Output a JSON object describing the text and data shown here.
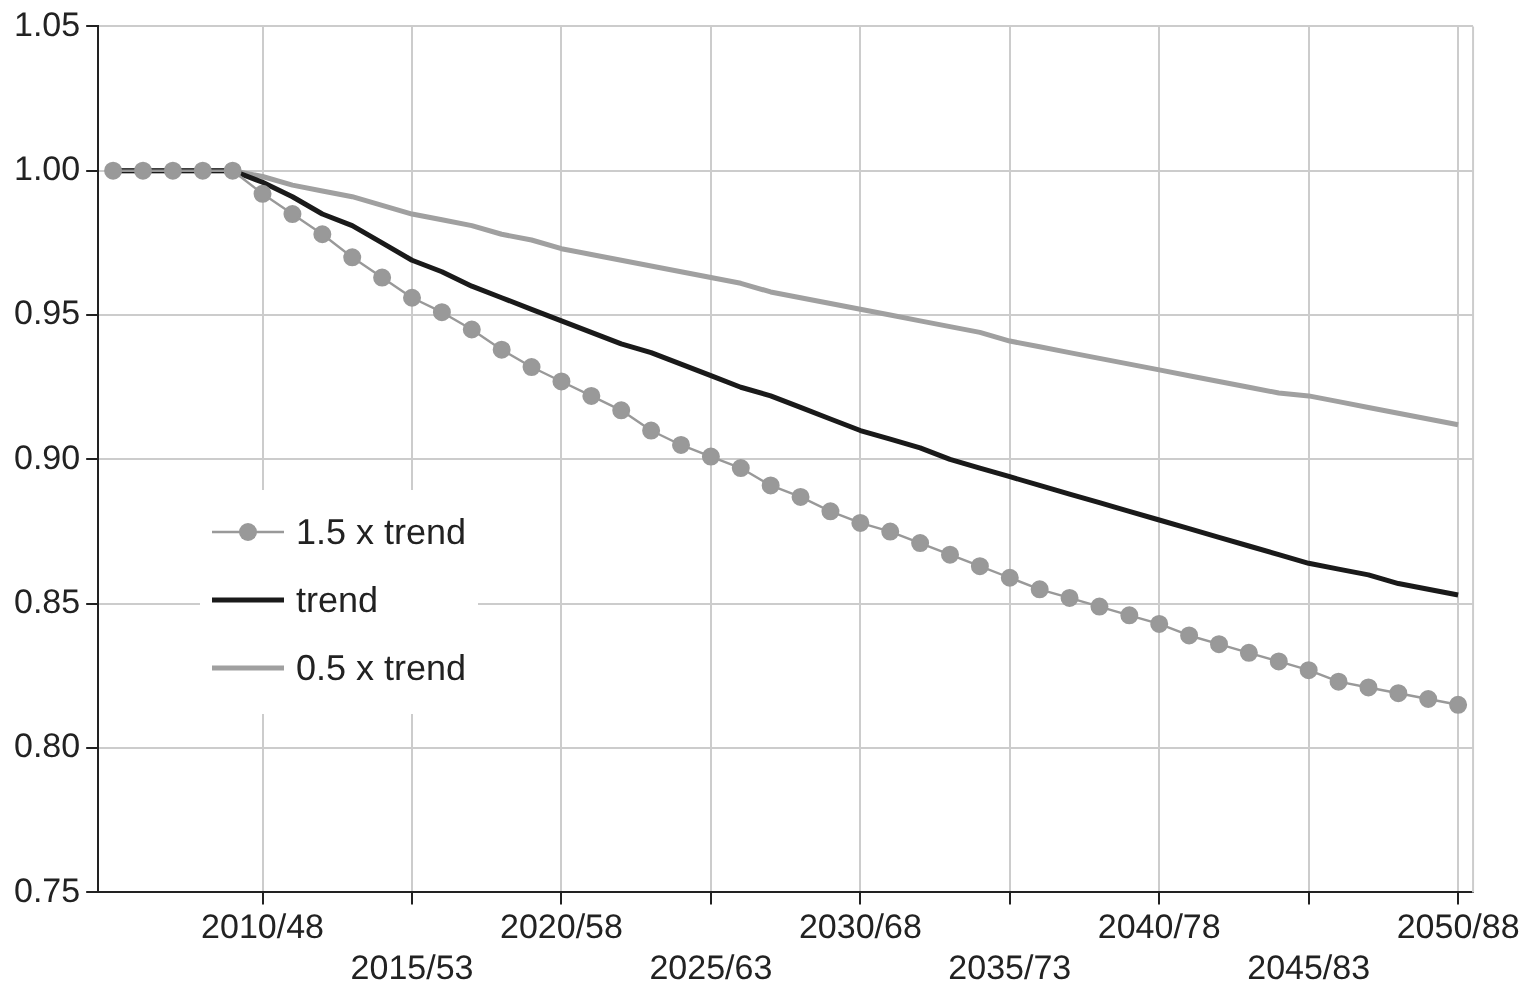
{
  "chart_data": {
    "type": "line",
    "categories": [
      null,
      null,
      null,
      null,
      null,
      "2010/48",
      null,
      null,
      null,
      null,
      "2015/53",
      null,
      null,
      null,
      null,
      "2020/58",
      null,
      null,
      null,
      null,
      "2025/63",
      null,
      null,
      null,
      null,
      "2030/68",
      null,
      null,
      null,
      null,
      "2035/73",
      null,
      null,
      null,
      null,
      "2040/78",
      null,
      null,
      null,
      null,
      "2045/83",
      null,
      null,
      null,
      null,
      "2050/88"
    ],
    "series": [
      {
        "name": "1.5 x trend",
        "color": "#999999",
        "marker": "circle",
        "values": [
          1.0,
          1.0,
          1.0,
          1.0,
          1.0,
          0.992,
          0.985,
          0.978,
          0.97,
          0.963,
          0.956,
          0.951,
          0.945,
          0.938,
          0.932,
          0.927,
          0.922,
          0.917,
          0.91,
          0.905,
          0.901,
          0.897,
          0.891,
          0.887,
          0.882,
          0.878,
          0.875,
          0.871,
          0.867,
          0.863,
          0.859,
          0.855,
          0.852,
          0.849,
          0.846,
          0.843,
          0.839,
          0.836,
          0.833,
          0.83,
          0.827,
          0.823,
          0.821,
          0.819,
          0.817,
          0.815
        ]
      },
      {
        "name": "trend",
        "color": "#1a1a1a",
        "marker": "none",
        "values": [
          1.0,
          1.0,
          1.0,
          1.0,
          1.0,
          0.996,
          0.991,
          0.985,
          0.981,
          0.975,
          0.969,
          0.965,
          0.96,
          0.956,
          0.952,
          0.948,
          0.944,
          0.94,
          0.937,
          0.933,
          0.929,
          0.925,
          0.922,
          0.918,
          0.914,
          0.91,
          0.907,
          0.904,
          0.9,
          0.897,
          0.894,
          0.891,
          0.888,
          0.885,
          0.882,
          0.879,
          0.876,
          0.873,
          0.87,
          0.867,
          0.864,
          0.862,
          0.86,
          0.857,
          0.855,
          0.853
        ]
      },
      {
        "name": "0.5 x trend",
        "color": "#a0a0a0",
        "marker": "none",
        "values": [
          1.0,
          1.0,
          1.0,
          1.0,
          1.0,
          0.998,
          0.995,
          0.993,
          0.991,
          0.988,
          0.985,
          0.983,
          0.981,
          0.978,
          0.976,
          0.973,
          0.971,
          0.969,
          0.967,
          0.965,
          0.963,
          0.961,
          0.958,
          0.956,
          0.954,
          0.952,
          0.95,
          0.948,
          0.946,
          0.944,
          0.941,
          0.939,
          0.937,
          0.935,
          0.933,
          0.931,
          0.929,
          0.927,
          0.925,
          0.923,
          0.922,
          0.92,
          0.918,
          0.916,
          0.914,
          0.912
        ]
      }
    ],
    "ylim": [
      0.75,
      1.05
    ],
    "yticks": [
      {
        "value": 0.75,
        "label": "0.75"
      },
      {
        "value": 0.8,
        "label": "0.80"
      },
      {
        "value": 0.85,
        "label": "0.85"
      },
      {
        "value": 0.9,
        "label": "0.90"
      },
      {
        "value": 0.95,
        "label": "0.95"
      },
      {
        "value": 1.0,
        "label": "1.00"
      },
      {
        "value": 1.05,
        "label": "1.05"
      }
    ],
    "grid": true,
    "legend": "left",
    "line_style": "solid"
  }
}
